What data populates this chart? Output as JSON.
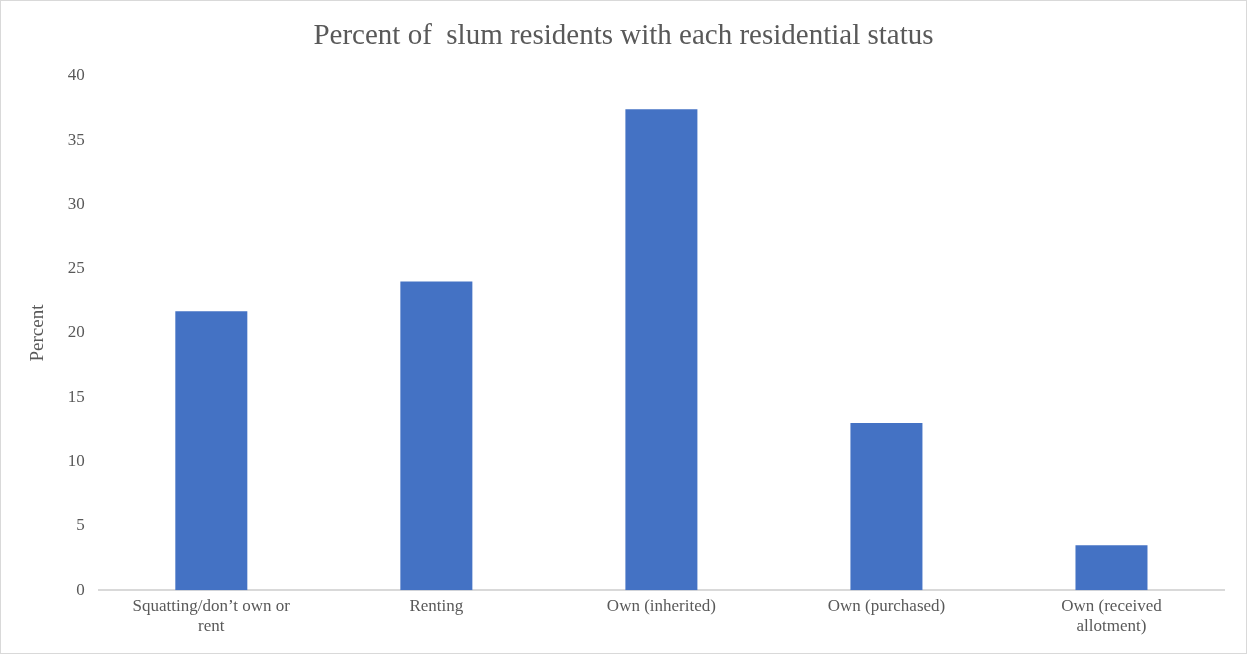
{
  "chart_data": {
    "type": "bar",
    "title": "Percent of  slum residents with each residential status",
    "ylabel": "Percent",
    "categories": [
      "Squatting/don’t own or rent",
      "Renting",
      "Own (inherited)",
      "Own (purchased)",
      "Own (received allotment)"
    ],
    "values": [
      21.7,
      24.0,
      37.4,
      13.0,
      3.5
    ],
    "color": "#4472c4",
    "ylim": [
      0,
      40
    ],
    "yticks": [
      0,
      5,
      10,
      15,
      20,
      25,
      30,
      35,
      40
    ],
    "grid": false,
    "legend": false
  }
}
